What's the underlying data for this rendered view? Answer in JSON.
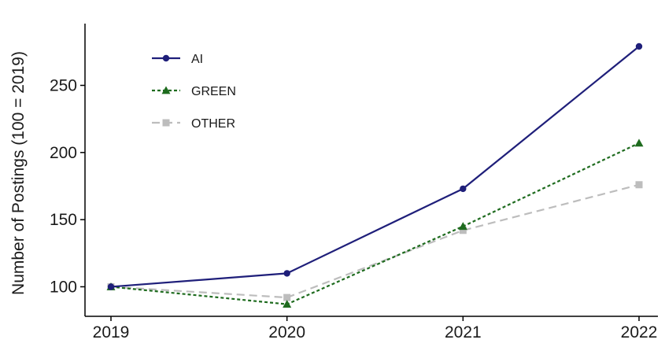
{
  "chart_data": {
    "type": "line",
    "title": "",
    "xlabel": "",
    "ylabel": "Number of Postings (100 = 2019)",
    "x": [
      "2019",
      "2020",
      "2021",
      "2022"
    ],
    "ylim": [
      78,
      296
    ],
    "yticks": [
      100,
      150,
      200,
      250
    ],
    "grid": false,
    "legend_position": "top-left",
    "series": [
      {
        "name": "AI",
        "values": [
          100,
          110,
          173,
          279
        ],
        "color": "#1f1f7a",
        "line_style": "solid",
        "marker": "circle"
      },
      {
        "name": "GREEN",
        "values": [
          100,
          87,
          145,
          207
        ],
        "color": "#1e6b1e",
        "line_style": "dotted",
        "marker": "triangle"
      },
      {
        "name": "OTHER",
        "values": [
          100,
          92,
          142,
          176
        ],
        "color": "#bdbdbd",
        "line_style": "dashed",
        "marker": "square"
      }
    ]
  }
}
